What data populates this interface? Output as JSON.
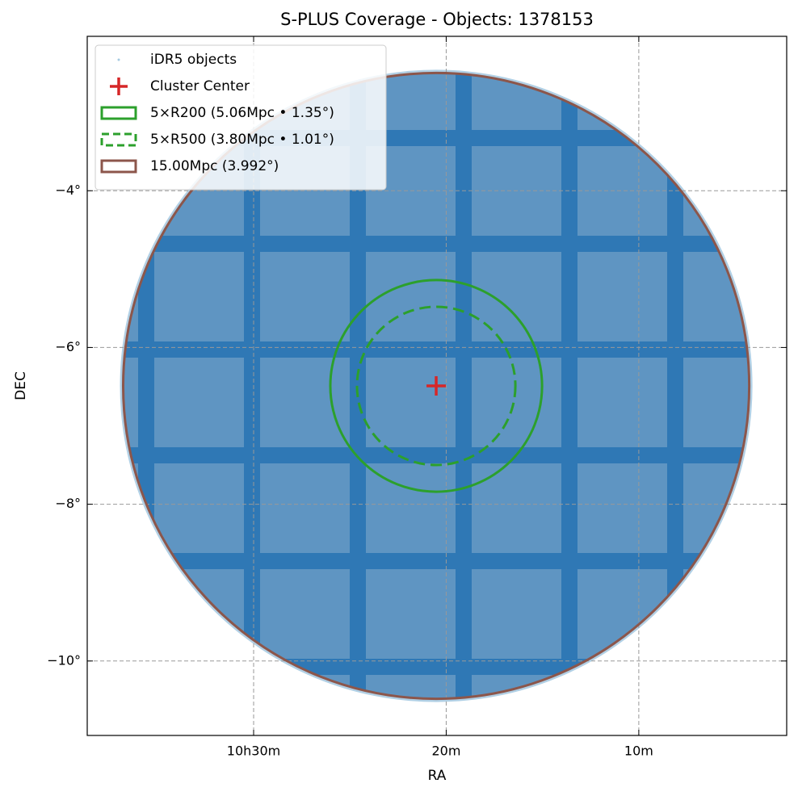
{
  "chart_data": {
    "type": "sky",
    "title": "S-PLUS Coverage - Objects: 1378153",
    "xlabel": "RA",
    "ylabel": "DEC",
    "xlim": [
      159.66,
      150.58
    ],
    "ylim": [
      -10.95,
      -2.03
    ],
    "xticks": [
      {
        "value": 157.5,
        "label": "10h30m"
      },
      {
        "value": 155,
        "label": "20m"
      },
      {
        "value": 152.5,
        "label": "10m"
      }
    ],
    "yticks": [
      {
        "value": -4,
        "label": "−4°"
      },
      {
        "value": -6,
        "label": "−6°"
      },
      {
        "value": -8,
        "label": "−8°"
      },
      {
        "value": -10,
        "label": "−10°"
      }
    ],
    "grid": true,
    "legend": "upper left",
    "center": {
      "x": 155.13,
      "y": -6.49
    },
    "series": [
      {
        "name": "iDR5 objects",
        "color": "#1f77b4",
        "marker": "dot"
      },
      {
        "name": "Cluster Center",
        "color": "#d62728",
        "marker": "plus"
      },
      {
        "name": "5×R200 (5.06Mpc • 1.35°)",
        "color": "#2ca02c",
        "radius": 1.35,
        "linestyle": "solid"
      },
      {
        "name": "5×R500 (3.80Mpc • 1.01°)",
        "color": "#2ca02c",
        "radius": 1.01,
        "linestyle": "dashed"
      },
      {
        "name": "15.00Mpc (3.992°)",
        "color": "#8c564b",
        "radius": 3.992,
        "linestyle": "solid"
      }
    ]
  }
}
